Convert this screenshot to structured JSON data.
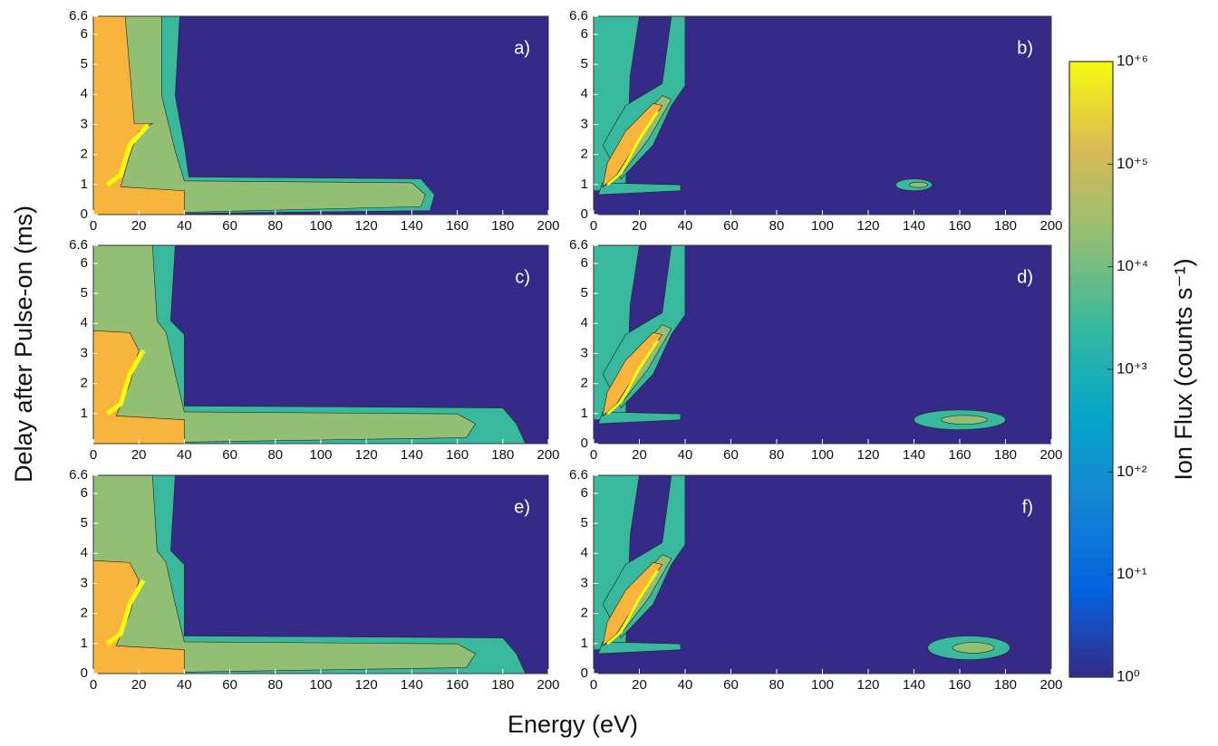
{
  "figure": {
    "xlabel": "Energy (eV)",
    "ylabel": "Delay after Pulse-on (ms)"
  },
  "colorbar": {
    "label": "Ion Flux (counts s⁻¹)",
    "scale": "log",
    "lim": [
      1,
      1000000
    ],
    "ticks": [
      {
        "value": 1,
        "label": "10⁰"
      },
      {
        "value": 10,
        "label": "10⁺¹"
      },
      {
        "value": 100,
        "label": "10⁺²"
      },
      {
        "value": 1000,
        "label": "10⁺³"
      },
      {
        "value": 10000,
        "label": "10⁺⁴"
      },
      {
        "value": 100000,
        "label": "10⁺⁵"
      },
      {
        "value": 1000000,
        "label": "10⁺⁶"
      }
    ],
    "colormap": [
      "#352a87",
      "#0363e1",
      "#1485d4",
      "#06a7c6",
      "#38b99e",
      "#92bf73",
      "#d9ba56",
      "#f8fa0d"
    ]
  },
  "chart_data": [
    {
      "type": "contour",
      "label": "a)",
      "xlim": [
        0,
        200
      ],
      "xticks": [
        0,
        20,
        40,
        60,
        80,
        100,
        120,
        140,
        160,
        180,
        200
      ],
      "ylim": [
        0,
        6.6
      ],
      "yticks": [
        0,
        1,
        2,
        3,
        4,
        5,
        6,
        6.6
      ]
    },
    {
      "type": "contour",
      "label": "b)",
      "xlim": [
        0,
        200
      ],
      "xticks": [
        0,
        20,
        40,
        60,
        80,
        100,
        120,
        140,
        160,
        180,
        200
      ],
      "ylim": [
        0,
        6.6
      ],
      "yticks": [
        0,
        1,
        2,
        3,
        4,
        5,
        6,
        6.6
      ]
    },
    {
      "type": "contour",
      "label": "c)",
      "xlim": [
        0,
        200
      ],
      "xticks": [
        0,
        20,
        40,
        60,
        80,
        100,
        120,
        140,
        160,
        180,
        200
      ],
      "ylim": [
        0,
        6.6
      ],
      "yticks": [
        1,
        2,
        3,
        4,
        5,
        6,
        6.6
      ]
    },
    {
      "type": "contour",
      "label": "d)",
      "xlim": [
        0,
        200
      ],
      "xticks": [
        0,
        20,
        40,
        60,
        80,
        100,
        120,
        140,
        160,
        180,
        200
      ],
      "ylim": [
        0,
        6.6
      ],
      "yticks": [
        0,
        1,
        2,
        3,
        4,
        5,
        6,
        6.6
      ]
    },
    {
      "type": "contour",
      "label": "e)",
      "xlim": [
        0,
        200
      ],
      "xticks": [
        0,
        20,
        40,
        60,
        80,
        100,
        120,
        140,
        160,
        180,
        200
      ],
      "ylim": [
        0,
        6.6
      ],
      "yticks": [
        0,
        1,
        2,
        3,
        4,
        5,
        6,
        6.6
      ]
    },
    {
      "type": "contour",
      "label": "f)",
      "xlim": [
        0,
        200
      ],
      "xticks": [
        0,
        20,
        40,
        60,
        80,
        100,
        120,
        140,
        160,
        180,
        200
      ],
      "ylim": [
        0,
        6.6
      ],
      "yticks": [
        0,
        1,
        2,
        3,
        4,
        5,
        6,
        6.6
      ]
    }
  ]
}
